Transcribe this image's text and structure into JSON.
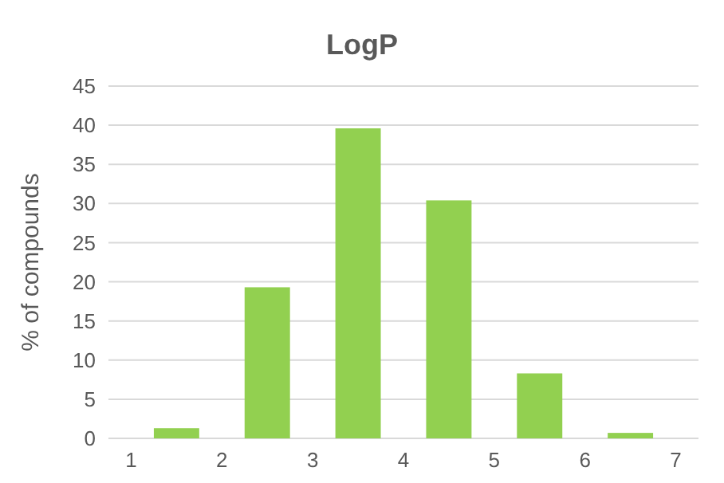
{
  "chart_data": {
    "type": "histogram",
    "title": "LogP",
    "ylabel": "% of compounds",
    "bins": [
      1,
      2,
      3,
      4,
      5,
      6,
      7
    ],
    "values": [
      1.3,
      19.3,
      39.6,
      30.4,
      8.3,
      0.7
    ],
    "color": "#92d050",
    "xlim": [
      0.75,
      7.25
    ],
    "xticks": [
      1,
      2,
      3,
      4,
      5,
      6,
      7
    ],
    "ylim": [
      0,
      45
    ],
    "yticks": [
      0,
      5,
      10,
      15,
      20,
      25,
      30,
      35,
      40,
      45
    ],
    "grid": "y"
  }
}
